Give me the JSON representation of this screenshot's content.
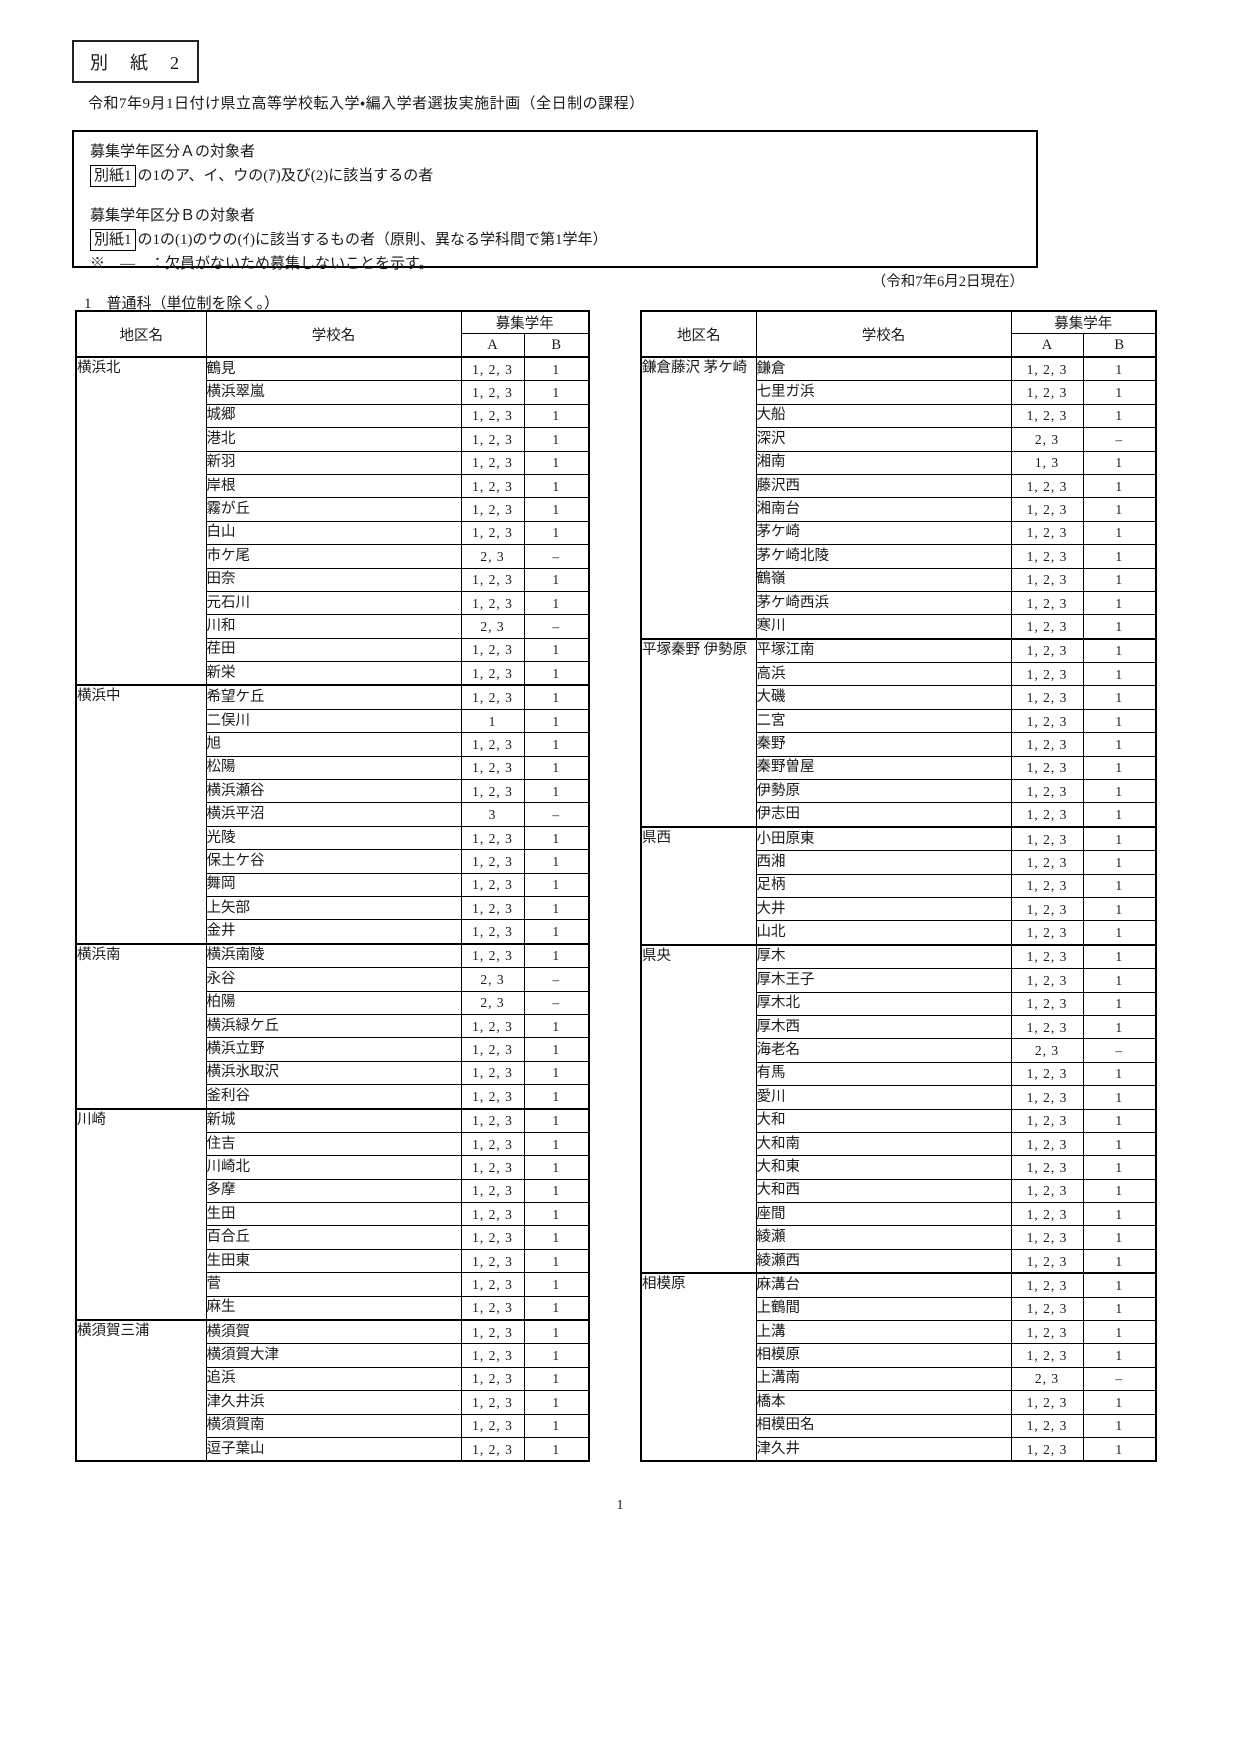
{
  "header": {
    "tag_label": "別　紙　2",
    "title": "令和7年9月1日付け県立高等学校転入学・編入学者選抜実施計画（全日制の課程）"
  },
  "notice_box": {
    "section_a_heading": "募集学年区分Ａの対象者",
    "section_a_ref": "別紙1",
    "section_a_text": "の1のア、イ、ウの(ｱ)及び(2)に該当するの者",
    "section_b_heading": "募集学年区分Ｂの対象者",
    "section_b_ref": "別紙1",
    "section_b_text": "の1の(1)のウの(ｲ)に該当するもの者（原則、異なる学科間で第1学年）",
    "note": "※　―　：欠員がないため募集しないことを示す。"
  },
  "date_note": "（令和7年6月2日現在）",
  "section_heading": "1　普通科（単位制を除く。）",
  "table_headers": {
    "district": "地区名",
    "school": "学校名",
    "recruit_grade": "募集学年",
    "col_a": "A",
    "col_b": "B"
  },
  "left_table": {
    "groups": [
      {
        "district": "横浜北",
        "schools": [
          {
            "name": "鶴見",
            "a": "1, 2, 3",
            "b": "1"
          },
          {
            "name": "横浜翠嵐",
            "a": "1, 2, 3",
            "b": "1"
          },
          {
            "name": "城郷",
            "a": "1, 2, 3",
            "b": "1"
          },
          {
            "name": "港北",
            "a": "1, 2, 3",
            "b": "1"
          },
          {
            "name": "新羽",
            "a": "1, 2, 3",
            "b": "1"
          },
          {
            "name": "岸根",
            "a": "1, 2, 3",
            "b": "1"
          },
          {
            "name": "霧が丘",
            "a": "1, 2, 3",
            "b": "1"
          },
          {
            "name": "白山",
            "a": "1, 2, 3",
            "b": "1"
          },
          {
            "name": "市ケ尾",
            "a": "2, 3",
            "b": "–"
          },
          {
            "name": "田奈",
            "a": "1, 2, 3",
            "b": "1"
          },
          {
            "name": "元石川",
            "a": "1, 2, 3",
            "b": "1"
          },
          {
            "name": "川和",
            "a": "2, 3",
            "b": "–"
          },
          {
            "name": "荏田",
            "a": "1, 2, 3",
            "b": "1"
          },
          {
            "name": "新栄",
            "a": "1, 2, 3",
            "b": "1"
          }
        ]
      },
      {
        "district": "横浜中",
        "schools": [
          {
            "name": "希望ケ丘",
            "a": "1, 2, 3",
            "b": "1"
          },
          {
            "name": "二俣川",
            "a": "1",
            "b": "1"
          },
          {
            "name": "旭",
            "a": "1, 2, 3",
            "b": "1"
          },
          {
            "name": "松陽",
            "a": "1, 2, 3",
            "b": "1"
          },
          {
            "name": "横浜瀬谷",
            "a": "1, 2, 3",
            "b": "1"
          },
          {
            "name": "横浜平沼",
            "a": "3",
            "b": "–"
          },
          {
            "name": "光陵",
            "a": "1, 2, 3",
            "b": "1"
          },
          {
            "name": "保土ケ谷",
            "a": "1, 2, 3",
            "b": "1"
          },
          {
            "name": "舞岡",
            "a": "1, 2, 3",
            "b": "1"
          },
          {
            "name": "上矢部",
            "a": "1, 2, 3",
            "b": "1"
          },
          {
            "name": "金井",
            "a": "1, 2, 3",
            "b": "1"
          }
        ]
      },
      {
        "district": "横浜南",
        "schools": [
          {
            "name": "横浜南陵",
            "a": "1, 2, 3",
            "b": "1"
          },
          {
            "name": "永谷",
            "a": "2, 3",
            "b": "–"
          },
          {
            "name": "柏陽",
            "a": "2, 3",
            "b": "–"
          },
          {
            "name": "横浜緑ケ丘",
            "a": "1, 2, 3",
            "b": "1"
          },
          {
            "name": "横浜立野",
            "a": "1, 2, 3",
            "b": "1"
          },
          {
            "name": "横浜氷取沢",
            "a": "1, 2, 3",
            "b": "1"
          },
          {
            "name": "釜利谷",
            "a": "1, 2, 3",
            "b": "1"
          }
        ]
      },
      {
        "district": "川崎",
        "schools": [
          {
            "name": "新城",
            "a": "1, 2, 3",
            "b": "1"
          },
          {
            "name": "住吉",
            "a": "1, 2, 3",
            "b": "1"
          },
          {
            "name": "川崎北",
            "a": "1, 2, 3",
            "b": "1"
          },
          {
            "name": "多摩",
            "a": "1, 2, 3",
            "b": "1"
          },
          {
            "name": "生田",
            "a": "1, 2, 3",
            "b": "1"
          },
          {
            "name": "百合丘",
            "a": "1, 2, 3",
            "b": "1"
          },
          {
            "name": "生田東",
            "a": "1, 2, 3",
            "b": "1"
          },
          {
            "name": "菅",
            "a": "1, 2, 3",
            "b": "1"
          },
          {
            "name": "麻生",
            "a": "1, 2, 3",
            "b": "1"
          }
        ]
      },
      {
        "district": "横須賀三浦",
        "schools": [
          {
            "name": "横須賀",
            "a": "1, 2, 3",
            "b": "1"
          },
          {
            "name": "横須賀大津",
            "a": "1, 2, 3",
            "b": "1"
          },
          {
            "name": "追浜",
            "a": "1, 2, 3",
            "b": "1"
          },
          {
            "name": "津久井浜",
            "a": "1, 2, 3",
            "b": "1"
          },
          {
            "name": "横須賀南",
            "a": "1, 2, 3",
            "b": "1"
          },
          {
            "name": "逗子葉山",
            "a": "1, 2, 3",
            "b": "1"
          }
        ]
      }
    ]
  },
  "right_table": {
    "groups": [
      {
        "district": "鎌倉藤沢\n茅ケ崎",
        "schools": [
          {
            "name": "鎌倉",
            "a": "1, 2, 3",
            "b": "1"
          },
          {
            "name": "七里ガ浜",
            "a": "1, 2, 3",
            "b": "1"
          },
          {
            "name": "大船",
            "a": "1, 2, 3",
            "b": "1"
          },
          {
            "name": "深沢",
            "a": "2, 3",
            "b": "–"
          },
          {
            "name": "湘南",
            "a": "1, 3",
            "b": "1"
          },
          {
            "name": "藤沢西",
            "a": "1, 2, 3",
            "b": "1"
          },
          {
            "name": "湘南台",
            "a": "1, 2, 3",
            "b": "1"
          },
          {
            "name": "茅ケ崎",
            "a": "1, 2, 3",
            "b": "1"
          },
          {
            "name": "茅ケ崎北陵",
            "a": "1, 2, 3",
            "b": "1"
          },
          {
            "name": "鶴嶺",
            "a": "1, 2, 3",
            "b": "1"
          },
          {
            "name": "茅ケ崎西浜",
            "a": "1, 2, 3",
            "b": "1"
          },
          {
            "name": "寒川",
            "a": "1, 2, 3",
            "b": "1"
          }
        ]
      },
      {
        "district": "平塚秦野\n伊勢原",
        "schools": [
          {
            "name": "平塚江南",
            "a": "1, 2, 3",
            "b": "1"
          },
          {
            "name": "高浜",
            "a": "1, 2, 3",
            "b": "1"
          },
          {
            "name": "大磯",
            "a": "1, 2, 3",
            "b": "1"
          },
          {
            "name": "二宮",
            "a": "1, 2, 3",
            "b": "1"
          },
          {
            "name": "秦野",
            "a": "1, 2, 3",
            "b": "1"
          },
          {
            "name": "秦野曽屋",
            "a": "1, 2, 3",
            "b": "1"
          },
          {
            "name": "伊勢原",
            "a": "1, 2, 3",
            "b": "1"
          },
          {
            "name": "伊志田",
            "a": "1, 2, 3",
            "b": "1"
          }
        ]
      },
      {
        "district": "県西",
        "schools": [
          {
            "name": "小田原東",
            "a": "1, 2, 3",
            "b": "1"
          },
          {
            "name": "西湘",
            "a": "1, 2, 3",
            "b": "1"
          },
          {
            "name": "足柄",
            "a": "1, 2, 3",
            "b": "1"
          },
          {
            "name": "大井",
            "a": "1, 2, 3",
            "b": "1"
          },
          {
            "name": "山北",
            "a": "1, 2, 3",
            "b": "1"
          }
        ]
      },
      {
        "district": "県央",
        "schools": [
          {
            "name": "厚木",
            "a": "1, 2, 3",
            "b": "1"
          },
          {
            "name": "厚木王子",
            "a": "1, 2, 3",
            "b": "1"
          },
          {
            "name": "厚木北",
            "a": "1, 2, 3",
            "b": "1"
          },
          {
            "name": "厚木西",
            "a": "1, 2, 3",
            "b": "1"
          },
          {
            "name": "海老名",
            "a": "2, 3",
            "b": "–"
          },
          {
            "name": "有馬",
            "a": "1, 2, 3",
            "b": "1"
          },
          {
            "name": "愛川",
            "a": "1, 2, 3",
            "b": "1"
          },
          {
            "name": "大和",
            "a": "1, 2, 3",
            "b": "1"
          },
          {
            "name": "大和南",
            "a": "1, 2, 3",
            "b": "1"
          },
          {
            "name": "大和東",
            "a": "1, 2, 3",
            "b": "1"
          },
          {
            "name": "大和西",
            "a": "1, 2, 3",
            "b": "1"
          },
          {
            "name": "座間",
            "a": "1, 2, 3",
            "b": "1"
          },
          {
            "name": "綾瀬",
            "a": "1, 2, 3",
            "b": "1"
          },
          {
            "name": "綾瀬西",
            "a": "1, 2, 3",
            "b": "1"
          }
        ]
      },
      {
        "district": "相模原",
        "schools": [
          {
            "name": "麻溝台",
            "a": "1, 2, 3",
            "b": "1"
          },
          {
            "name": "上鶴間",
            "a": "1, 2, 3",
            "b": "1"
          },
          {
            "name": "上溝",
            "a": "1, 2, 3",
            "b": "1"
          },
          {
            "name": "相模原",
            "a": "1, 2, 3",
            "b": "1"
          },
          {
            "name": "上溝南",
            "a": "2, 3",
            "b": "–"
          },
          {
            "name": "橋本",
            "a": "1, 2, 3",
            "b": "1"
          },
          {
            "name": "相模田名",
            "a": "1, 2, 3",
            "b": "1"
          },
          {
            "name": "津久井",
            "a": "1, 2, 3",
            "b": "1"
          }
        ]
      }
    ]
  },
  "page_number": "1"
}
